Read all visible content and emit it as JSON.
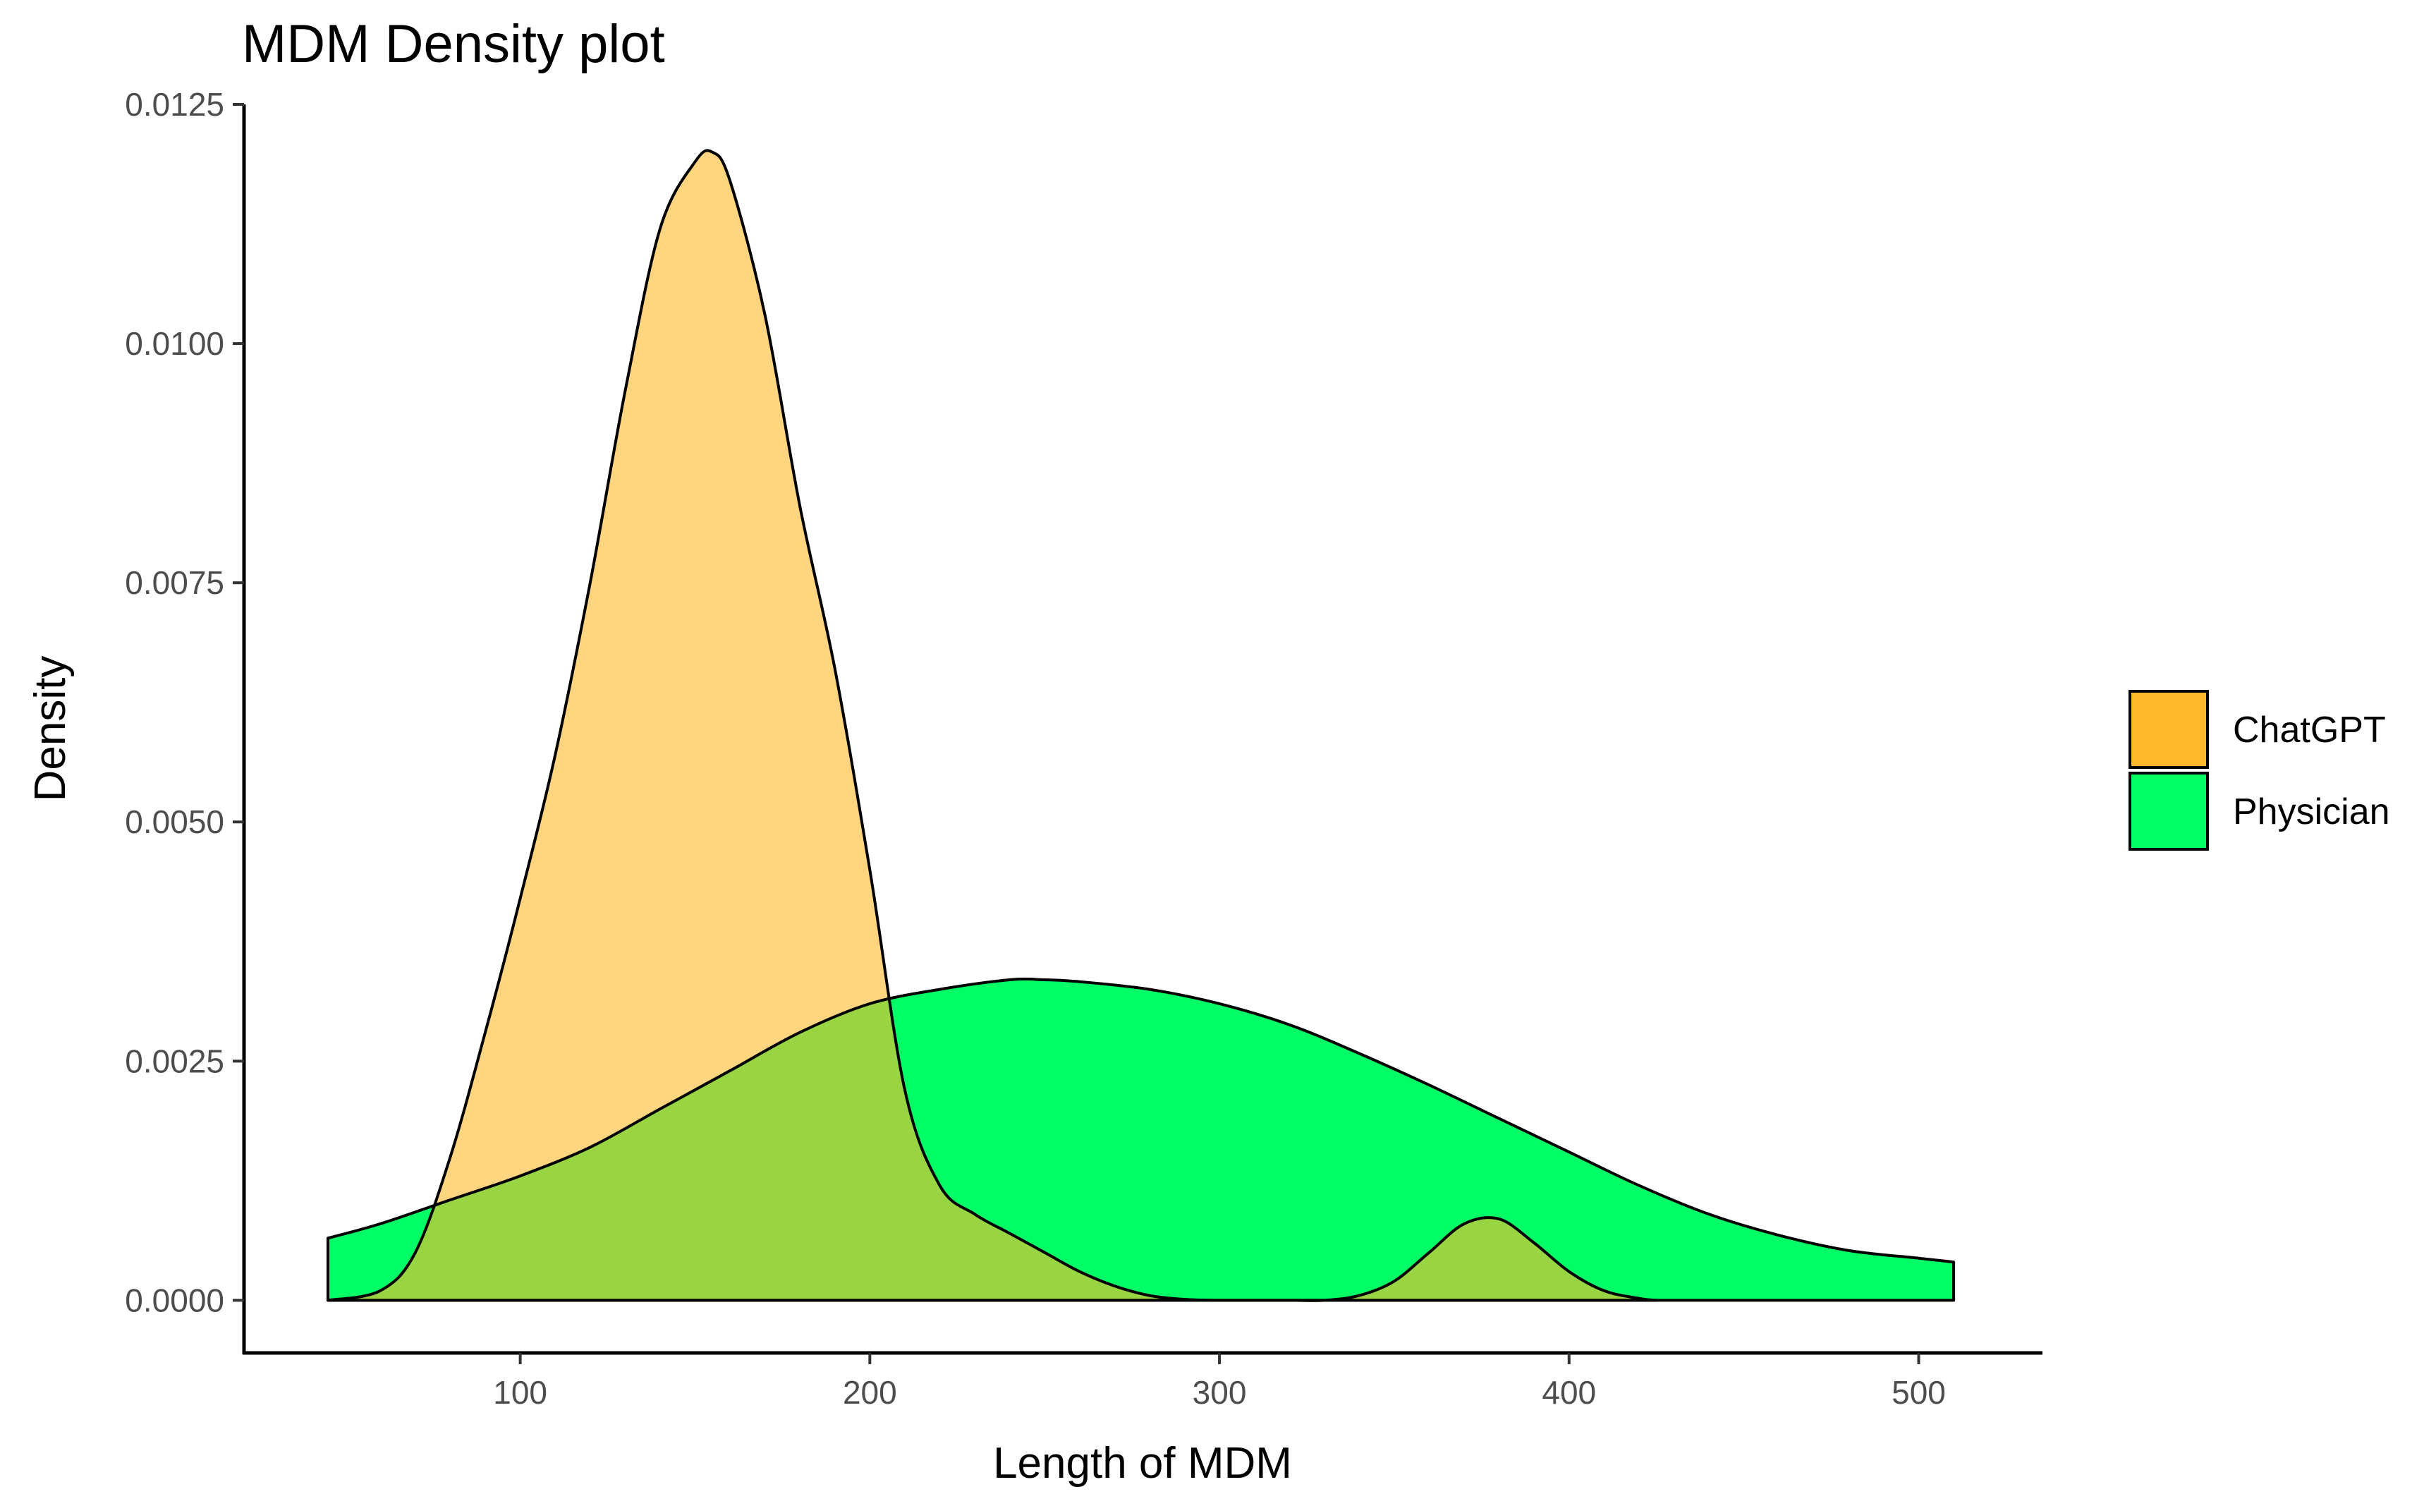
{
  "chart_data": {
    "type": "area",
    "title": "MDM Density plot",
    "xlabel": "Length of MDM",
    "ylabel": "Density",
    "xlim": [
      21,
      535
    ],
    "ylim": [
      -0.00055,
      0.0125
    ],
    "x_ticks": [
      100,
      200,
      300,
      400,
      500
    ],
    "x_tick_labels": [
      "100",
      "200",
      "300",
      "400",
      "500"
    ],
    "y_ticks": [
      0,
      0.0025,
      0.005,
      0.0075,
      0.01,
      0.0125
    ],
    "y_tick_labels": [
      "0.0000",
      "0.0025",
      "0.0050",
      "0.0075",
      "0.0100",
      "0.0125"
    ],
    "grid": false,
    "legend_position": "right",
    "colors": {
      "ChatGPT": "#ffb92b",
      "Physician": "#00ff66",
      "overlap": "#b7d42a"
    },
    "series": [
      {
        "name": "ChatGPT",
        "color": "#ffb92b",
        "x": [
          45,
          60,
          70,
          80,
          90,
          100,
          110,
          120,
          130,
          140,
          150,
          155,
          160,
          170,
          180,
          190,
          200,
          210,
          220,
          230,
          240,
          250,
          260,
          270,
          280,
          290,
          300,
          310,
          320,
          330,
          340,
          350,
          360,
          370,
          380,
          390,
          400,
          410,
          420,
          425
        ],
        "values": [
          0.0,
          0.0001,
          0.0005,
          0.0015,
          0.0028,
          0.0042,
          0.0057,
          0.0075,
          0.0095,
          0.0112,
          0.0119,
          0.012,
          0.0117,
          0.0103,
          0.0083,
          0.0066,
          0.0045,
          0.0022,
          0.0012,
          0.0009,
          0.0007,
          0.0005,
          0.0003,
          0.00015,
          5e-05,
          1e-05,
          0.0,
          0.0,
          0.0,
          0.0,
          5e-05,
          0.0002,
          0.0005,
          0.0008,
          0.00085,
          0.0006,
          0.0003,
          0.0001,
          2e-05,
          0.0
        ]
      },
      {
        "name": "Physician",
        "color": "#00ff66",
        "x": [
          45,
          60,
          80,
          100,
          120,
          140,
          160,
          180,
          200,
          220,
          240,
          250,
          260,
          280,
          300,
          320,
          340,
          360,
          380,
          400,
          420,
          440,
          460,
          480,
          500,
          510
        ],
        "values": [
          0.00065,
          0.0008,
          0.00105,
          0.0013,
          0.0016,
          0.002,
          0.0024,
          0.0028,
          0.0031,
          0.00325,
          0.00335,
          0.00335,
          0.00333,
          0.00325,
          0.0031,
          0.00288,
          0.00258,
          0.00225,
          0.0019,
          0.00155,
          0.0012,
          0.0009,
          0.00068,
          0.00052,
          0.00044,
          0.0004
        ]
      }
    ]
  }
}
